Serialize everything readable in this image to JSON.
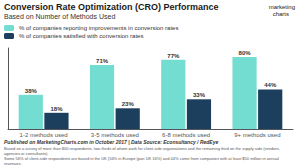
{
  "chart_data": {
    "type": "bar",
    "title": "Conversion Rate Optimization (CRO) Performance",
    "subtitle": "Based on Number of Methods Used",
    "categories": [
      "1-2 methods used",
      "3-5 methods used",
      "6-8 methods used",
      "9+ methods used"
    ],
    "series": [
      {
        "name": "% of companies reporting improvements in conversion rates",
        "color": "#72ddd0",
        "values": [
          38,
          71,
          77,
          80
        ],
        "value_labels": [
          "38%",
          "71%",
          "77%",
          "80%"
        ]
      },
      {
        "name": "% of companies satisfied with conversion rates",
        "color": "#1c3f5e",
        "values": [
          18,
          23,
          33,
          44
        ],
        "value_labels": [
          "18%",
          "23%",
          "33%",
          "44%"
        ]
      }
    ],
    "ylim": [
      0,
      90
    ],
    "grid": false,
    "legend": "upper left",
    "data_labels": true,
    "tick_labels": "x",
    "annotations": [
      "marketing",
      "charts",
      "Published on MarketingCharts.com in October 2017 | Data Source: Econsultancy / RedEye",
      "Based on a survey of more than 800 respondents, two-thirds of whom work for client-side organisations and the remaining third on the supply side (vendors, agencies or consultants).\nSome 56% of client-side respondents are based in the UK (56% in Europe (pan UK 16%) and 44% come from companies with at least $50 million in annual revenues."
    ]
  }
}
